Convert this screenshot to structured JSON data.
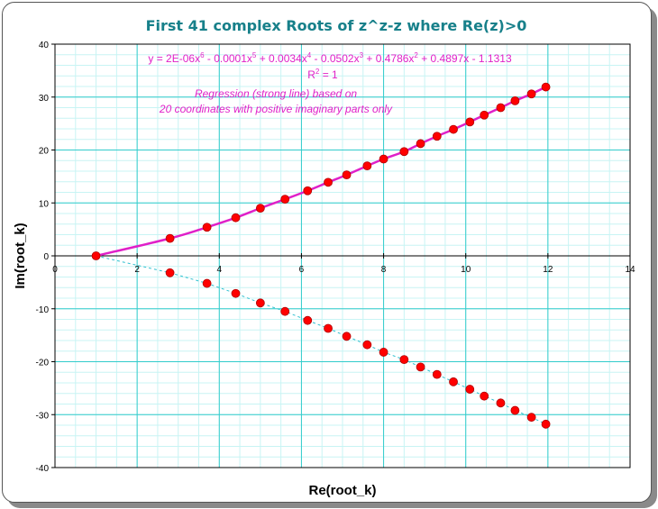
{
  "chart_data": {
    "type": "scatter",
    "title": "First 41 complex Roots of z^z-z where Re(z)>0",
    "xlabel": "Re(root_k)",
    "ylabel": "Im(root_k)",
    "xlim": [
      0,
      14
    ],
    "ylim": [
      -40,
      40
    ],
    "xticks": [
      "0",
      "2",
      "4",
      "6",
      "8",
      "10",
      "12",
      "14"
    ],
    "yticks": [
      "-40",
      "-30",
      "-20",
      "-10",
      "0",
      "10",
      "20",
      "30",
      "40"
    ],
    "grid": true,
    "equation": {
      "pre": "y = 2E-06x",
      "e1": "6",
      "p1": " - 0.0001x",
      "e2": "5",
      "p2": " + 0.0034x",
      "e3": "4",
      "p3": " - 0.0502x",
      "e4": "3",
      "p4": " + 0.4786x",
      "e5": "2",
      "p5": " + 0.4897x - 1.1313"
    },
    "r2": {
      "pre": "R",
      "sup": "2",
      "post": " = 1"
    },
    "annotation_line1": "Regression (strong line) based on",
    "annotation_line2": "20 coordinates with positive imaginary parts only",
    "colors": {
      "title": "#17808a",
      "grid_major": "#33cccc",
      "grid_minor": "#c8f4f4",
      "points": "#ff0000",
      "regression": "#e020c8",
      "dashed": "#30c0d0"
    },
    "series": [
      {
        "x": [
          1.0,
          2.8,
          3.7,
          4.4,
          5.0,
          5.6,
          6.15,
          6.65,
          7.1,
          7.6,
          8.0,
          8.5,
          8.9,
          9.3,
          9.7,
          10.1,
          10.45,
          10.85,
          11.2,
          11.6,
          11.95
        ],
        "y": [
          0,
          3.3,
          5.4,
          7.2,
          9.0,
          10.7,
          12.3,
          13.9,
          15.3,
          17.0,
          18.3,
          19.7,
          21.2,
          22.6,
          23.9,
          25.3,
          26.6,
          28.0,
          29.3,
          30.6,
          31.9
        ]
      },
      {
        "x": [
          1.0,
          2.8,
          3.7,
          4.4,
          5.0,
          5.6,
          6.15,
          6.65,
          7.1,
          7.6,
          8.0,
          8.5,
          8.9,
          9.3,
          9.7,
          10.1,
          10.45,
          10.85,
          11.2,
          11.6,
          11.95
        ],
        "y": [
          0,
          -3.2,
          -5.2,
          -7.1,
          -8.9,
          -10.5,
          -12.2,
          -13.7,
          -15.2,
          -16.8,
          -18.2,
          -19.6,
          -21.0,
          -22.4,
          -23.8,
          -25.2,
          -26.5,
          -27.8,
          -29.2,
          -30.5,
          -31.8
        ]
      }
    ]
  }
}
